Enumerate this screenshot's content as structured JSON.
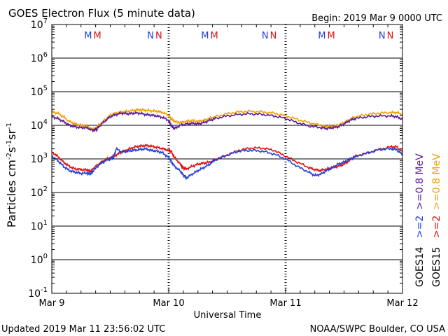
{
  "header": {
    "title": "GOES Electron Flux (5 minute data)",
    "begin": "Begin: 2019 Mar 9 0000 UTC"
  },
  "footer": {
    "updated": "Updated 2019 Mar 11 23:56:02 UTC",
    "credit": "NOAA/SWPC Boulder, CO USA"
  },
  "colors": {
    "goes14_ge2": "#1f3fdc",
    "goes15_ge2": "#e01010",
    "goes14_ge08": "#5b1a9a",
    "goes15_ge08": "#f0a000",
    "marker_M_first": "#1f3fdc",
    "marker_M_second": "#e01010",
    "marker_N_first": "#1f3fdc",
    "marker_N_second": "#e01010"
  },
  "chart_data": {
    "type": "line",
    "title": "GOES Electron Flux (5 minute data)",
    "xlabel": "Universal Time",
    "ylabel_parts": {
      "base": "Particles cm",
      "e1": "-2",
      "s": "s",
      "e2": "-1",
      "sr": "sr",
      "e3": "-1"
    },
    "x_range_days": [
      0,
      3
    ],
    "x_ticks": [
      {
        "day": 0,
        "label": "Mar 9"
      },
      {
        "day": 1,
        "label": "Mar 10"
      },
      {
        "day": 2,
        "label": "Mar 11"
      },
      {
        "day": 3,
        "label": "Mar 12"
      }
    ],
    "y_scale": "log",
    "y_range_log10": [
      -1,
      7
    ],
    "y_ticks": [
      {
        "base": "10",
        "exp": "7",
        "log": 7
      },
      {
        "base": "10",
        "exp": "6",
        "log": 6
      },
      {
        "base": "10",
        "exp": "5",
        "log": 5
      },
      {
        "base": "10",
        "exp": "4",
        "log": 4
      },
      {
        "base": "10",
        "exp": "3",
        "log": 3
      },
      {
        "base": "10",
        "exp": "2",
        "log": 2
      },
      {
        "base": "10",
        "exp": "1",
        "log": 1
      },
      {
        "base": "10",
        "exp": "0",
        "log": 0
      },
      {
        "base": "10",
        "exp": "-1",
        "log": -1
      }
    ],
    "threshold_log10": 3,
    "midnight_separators_days": [
      1,
      2
    ],
    "markers": [
      {
        "day": 0.35,
        "letters": [
          {
            "t": "M",
            "c": "marker_M_first"
          },
          {
            "t": "M",
            "c": "marker_M_second"
          }
        ]
      },
      {
        "day": 0.88,
        "letters": [
          {
            "t": "N",
            "c": "marker_N_first"
          },
          {
            "t": "N",
            "c": "marker_N_second"
          }
        ]
      },
      {
        "day": 1.35,
        "letters": [
          {
            "t": "M",
            "c": "marker_M_first"
          },
          {
            "t": "M",
            "c": "marker_M_second"
          }
        ]
      },
      {
        "day": 1.86,
        "letters": [
          {
            "t": "N",
            "c": "marker_N_first"
          },
          {
            "t": "N",
            "c": "marker_N_second"
          }
        ]
      },
      {
        "day": 2.35,
        "letters": [
          {
            "t": "M",
            "c": "marker_M_first"
          },
          {
            "t": "M",
            "c": "marker_M_second"
          }
        ]
      },
      {
        "day": 2.86,
        "letters": [
          {
            "t": "N",
            "c": "marker_N_first"
          },
          {
            "t": "N",
            "c": "marker_N_second"
          }
        ]
      }
    ],
    "legend_left": [
      {
        "text": ">=2",
        "color": "goes14_ge2"
      },
      {
        "text": ">=0.8 MeV",
        "color": "goes14_ge08"
      },
      {
        "text": "GOES14",
        "color": ""
      }
    ],
    "legend_right": [
      {
        "text": ">=2",
        "color": "goes15_ge2"
      },
      {
        "text": ">=0.8 MeV",
        "color": "goes15_ge08"
      },
      {
        "text": "GOES15",
        "color": ""
      }
    ],
    "series": [
      {
        "name": "GOES15 >=0.8 MeV",
        "color": "goes15_ge08",
        "x": [
          0,
          0.05,
          0.1,
          0.15,
          0.2,
          0.25,
          0.3,
          0.35,
          0.38,
          0.4,
          0.45,
          0.5,
          0.55,
          0.6,
          0.65,
          0.7,
          0.75,
          0.8,
          0.85,
          0.9,
          0.95,
          1.0,
          1.02,
          1.05,
          1.1,
          1.15,
          1.2,
          1.25,
          1.3,
          1.35,
          1.4,
          1.5,
          1.6,
          1.7,
          1.8,
          1.9,
          2.0,
          2.1,
          2.2,
          2.3,
          2.35,
          2.4,
          2.45,
          2.5,
          2.55,
          2.6,
          2.7,
          2.8,
          2.9,
          2.95,
          3.0
        ],
        "y": [
          25000,
          23000,
          18000,
          13000,
          11000,
          10000,
          9500,
          7500,
          8000,
          10000,
          14000,
          20000,
          23000,
          25000,
          26000,
          28000,
          29000,
          28000,
          27000,
          26000,
          24000,
          20000,
          16000,
          13000,
          12000,
          13000,
          14000,
          13000,
          14000,
          16000,
          18000,
          22000,
          25000,
          26000,
          25000,
          23000,
          19000,
          15000,
          12000,
          10000,
          9000,
          9500,
          10000,
          12000,
          15000,
          18000,
          21000,
          23000,
          24000,
          24000,
          21000
        ]
      },
      {
        "name": "GOES14 >=0.8 MeV",
        "color": "goes14_ge08",
        "x": [
          0,
          0.05,
          0.1,
          0.15,
          0.2,
          0.25,
          0.3,
          0.35,
          0.38,
          0.4,
          0.45,
          0.5,
          0.55,
          0.6,
          0.65,
          0.7,
          0.75,
          0.8,
          0.85,
          0.9,
          0.95,
          1.0,
          1.02,
          1.05,
          1.1,
          1.15,
          1.2,
          1.25,
          1.3,
          1.35,
          1.4,
          1.5,
          1.6,
          1.7,
          1.8,
          1.9,
          2.0,
          2.1,
          2.2,
          2.3,
          2.35,
          2.4,
          2.45,
          2.5,
          2.55,
          2.6,
          2.7,
          2.8,
          2.9,
          2.95,
          3.0
        ],
        "y": [
          18000,
          16000,
          13000,
          10000,
          9000,
          8500,
          8500,
          7000,
          7500,
          9000,
          13000,
          18000,
          21000,
          23000,
          22000,
          23000,
          23000,
          21000,
          20000,
          19000,
          17000,
          14000,
          10000,
          8000,
          10000,
          11000,
          11500,
          11000,
          12000,
          14000,
          16000,
          19000,
          21000,
          22000,
          21000,
          19000,
          16000,
          12000,
          9500,
          8500,
          8000,
          8500,
          9000,
          11000,
          14000,
          16000,
          18000,
          19000,
          19000,
          18000,
          15000
        ]
      },
      {
        "name": "GOES15 >=2 MeV",
        "color": "goes15_ge2",
        "x": [
          0,
          0.05,
          0.1,
          0.15,
          0.2,
          0.25,
          0.3,
          0.33,
          0.35,
          0.4,
          0.45,
          0.5,
          0.55,
          0.6,
          0.65,
          0.7,
          0.75,
          0.8,
          0.85,
          0.9,
          0.95,
          1.0,
          1.02,
          1.05,
          1.1,
          1.12,
          1.15,
          1.2,
          1.25,
          1.3,
          1.35,
          1.4,
          1.5,
          1.6,
          1.7,
          1.8,
          1.9,
          2.0,
          2.1,
          2.2,
          2.25,
          2.3,
          2.35,
          2.4,
          2.45,
          2.5,
          2.55,
          2.6,
          2.7,
          2.8,
          2.9,
          2.95,
          3.0
        ],
        "y": [
          1600,
          1200,
          800,
          600,
          500,
          480,
          470,
          420,
          500,
          700,
          900,
          1100,
          1300,
          1600,
          1900,
          2200,
          2400,
          2500,
          2400,
          2200,
          2000,
          1800,
          1700,
          1100,
          700,
          550,
          500,
          600,
          700,
          750,
          800,
          950,
          1300,
          1800,
          2100,
          2100,
          1800,
          1200,
          800,
          550,
          480,
          450,
          500,
          550,
          600,
          700,
          900,
          1200,
          1500,
          1900,
          2300,
          2300,
          1600
        ]
      },
      {
        "name": "GOES14 >=2 MeV",
        "color": "goes14_ge2",
        "x": [
          0,
          0.05,
          0.1,
          0.15,
          0.2,
          0.25,
          0.3,
          0.33,
          0.35,
          0.4,
          0.45,
          0.5,
          0.53,
          0.55,
          0.6,
          0.65,
          0.7,
          0.75,
          0.8,
          0.85,
          0.9,
          0.95,
          1.0,
          1.02,
          1.05,
          1.1,
          1.12,
          1.15,
          1.2,
          1.25,
          1.3,
          1.35,
          1.4,
          1.5,
          1.6,
          1.7,
          1.8,
          1.9,
          2.0,
          2.1,
          2.2,
          2.25,
          2.3,
          2.35,
          2.4,
          2.45,
          2.5,
          2.55,
          2.6,
          2.7,
          2.8,
          2.9,
          2.95,
          3.0
        ],
        "y": [
          1200,
          900,
          600,
          450,
          400,
          370,
          380,
          350,
          420,
          650,
          850,
          1000,
          1100,
          2000,
          1600,
          1700,
          1800,
          1900,
          2000,
          1800,
          1700,
          1500,
          1100,
          850,
          600,
          430,
          350,
          270,
          350,
          450,
          550,
          700,
          950,
          1300,
          1700,
          1800,
          1700,
          1400,
          1000,
          600,
          400,
          320,
          350,
          450,
          550,
          700,
          800,
          1000,
          1200,
          1500,
          1900,
          2000,
          1900,
          1300
        ]
      }
    ]
  }
}
